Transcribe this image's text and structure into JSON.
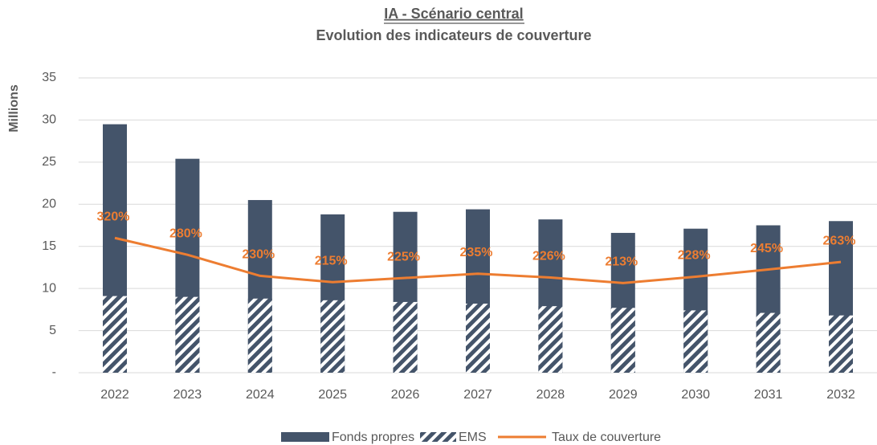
{
  "chart_data": {
    "type": "bar",
    "title": "IA - Scénario central",
    "subtitle": "Evolution des indicateurs de couverture",
    "y_label": "Millions",
    "categories": [
      "2022",
      "2023",
      "2024",
      "2025",
      "2026",
      "2027",
      "2028",
      "2029",
      "2030",
      "2031",
      "2032"
    ],
    "series": [
      {
        "name": "Fonds propres",
        "type": "bar",
        "color": "#44546a",
        "values": [
          29.5,
          25.4,
          20.5,
          18.8,
          19.1,
          19.4,
          18.2,
          16.6,
          17.1,
          17.5,
          18.0
        ]
      },
      {
        "name": "EMS",
        "type": "bar",
        "hatch": true,
        "color": "#44546a",
        "values": [
          9.1,
          9.0,
          8.8,
          8.6,
          8.4,
          8.2,
          7.9,
          7.7,
          7.4,
          7.1,
          6.8
        ]
      },
      {
        "name": "Taux de couverture",
        "type": "line",
        "axis": "y2",
        "color": "#ed7d31",
        "values": [
          320,
          280,
          230,
          215,
          225,
          235,
          226,
          213,
          228,
          245,
          263
        ],
        "value_labels": [
          "320%",
          "280%",
          "230%",
          "215%",
          "225%",
          "235%",
          "226%",
          "213%",
          "228%",
          "245%",
          "263%"
        ]
      }
    ],
    "ylim": [
      0,
      35
    ],
    "yticks": [
      {
        "value": 0,
        "label": "-"
      },
      5,
      10,
      15,
      20,
      25,
      30,
      35
    ],
    "y2lim": [
      0,
      700
    ],
    "grid": true,
    "legend": "bottom"
  }
}
